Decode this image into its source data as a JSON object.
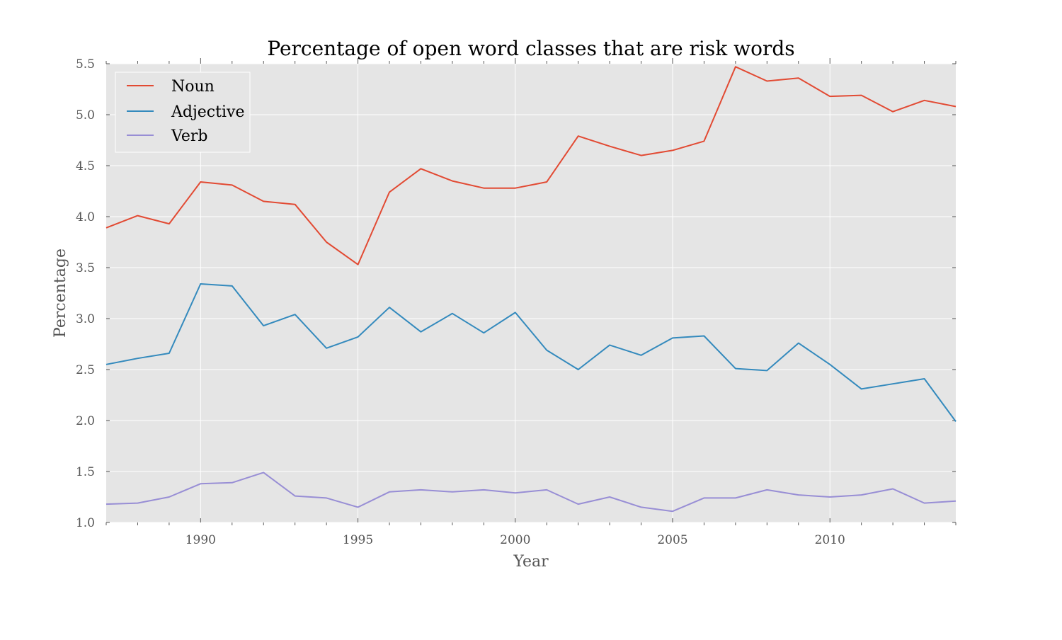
{
  "chart_data": {
    "type": "line",
    "title": "Percentage of open word classes that are risk words",
    "xlabel": "Year",
    "ylabel": "Percentage",
    "xlim": [
      1987,
      2014
    ],
    "ylim": [
      1.0,
      5.5
    ],
    "xticks": [
      1990,
      1995,
      2000,
      2005,
      2010
    ],
    "yticks": [
      "1.0",
      "1.5",
      "2.0",
      "2.5",
      "3.0",
      "3.5",
      "4.0",
      "4.5",
      "5.0",
      "5.5"
    ],
    "grid": true,
    "legend_position": "top-left",
    "background": "#e5e5e5",
    "x": [
      1987,
      1988,
      1989,
      1990,
      1991,
      1992,
      1993,
      1994,
      1995,
      1996,
      1997,
      1998,
      1999,
      2000,
      2001,
      2002,
      2003,
      2004,
      2005,
      2006,
      2007,
      2008,
      2009,
      2010,
      2011,
      2012,
      2013,
      2014
    ],
    "series": [
      {
        "name": "Noun",
        "color": "#e24a33",
        "values": [
          3.89,
          4.01,
          3.93,
          4.34,
          4.31,
          4.15,
          4.12,
          3.75,
          3.53,
          4.24,
          4.47,
          4.35,
          4.28,
          4.28,
          4.34,
          4.79,
          4.69,
          4.6,
          4.65,
          4.74,
          5.47,
          5.33,
          5.36,
          5.18,
          5.19,
          5.03,
          5.14,
          5.08
        ]
      },
      {
        "name": "Adjective",
        "color": "#348abd",
        "values": [
          2.55,
          2.61,
          2.66,
          3.34,
          3.32,
          2.93,
          3.04,
          2.71,
          2.82,
          3.11,
          2.87,
          3.05,
          2.86,
          3.06,
          2.69,
          2.5,
          2.74,
          2.64,
          2.81,
          2.83,
          2.51,
          2.49,
          2.76,
          2.55,
          2.31,
          2.36,
          2.41,
          1.99
        ]
      },
      {
        "name": "Verb",
        "color": "#988ed5",
        "values": [
          1.18,
          1.19,
          1.25,
          1.38,
          1.39,
          1.49,
          1.26,
          1.24,
          1.15,
          1.3,
          1.32,
          1.3,
          1.32,
          1.29,
          1.32,
          1.18,
          1.25,
          1.15,
          1.11,
          1.24,
          1.24,
          1.32,
          1.27,
          1.25,
          1.27,
          1.33,
          1.19,
          1.21
        ]
      }
    ]
  }
}
